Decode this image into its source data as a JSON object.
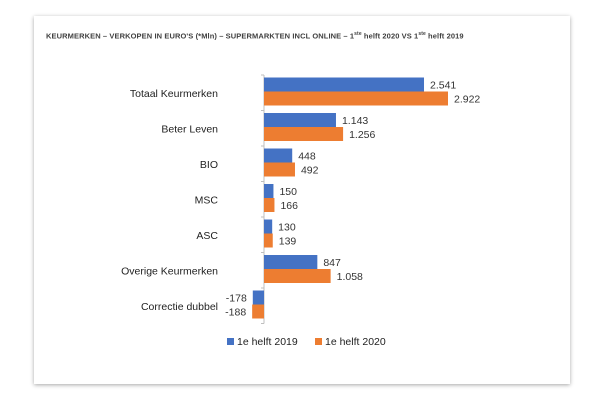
{
  "title": {
    "prefix": "KEURMERKEN – VERKOPEN IN EURO'S (*Mln) – SUPERMARKTEN INCL ONLINE – 1",
    "sup1": "ste",
    "mid": " helft 2020 VS 1",
    "sup2": "ste",
    "suffix": " helft 2019"
  },
  "chart_data": {
    "type": "bar",
    "orientation": "horizontal",
    "categories": [
      "Totaal Keurmerken",
      "Beter Leven",
      "BIO",
      "MSC",
      "ASC",
      "Overige Keurmerken",
      "Correctie dubbel"
    ],
    "series": [
      {
        "name": "1e helft 2019",
        "color": "#4472C4",
        "values": [
          2541,
          1143,
          448,
          150,
          130,
          847,
          -178
        ],
        "labels": [
          "2.541",
          "1.143",
          "448",
          "150",
          "130",
          "847",
          "-178"
        ]
      },
      {
        "name": "1e helft 2020",
        "color": "#ED7D31",
        "values": [
          2922,
          1256,
          492,
          166,
          139,
          1058,
          -188
        ],
        "labels": [
          "2.922",
          "1.256",
          "492",
          "166",
          "139",
          "1.058",
          "-188"
        ]
      }
    ],
    "legend_position": "bottom",
    "grid": false
  }
}
